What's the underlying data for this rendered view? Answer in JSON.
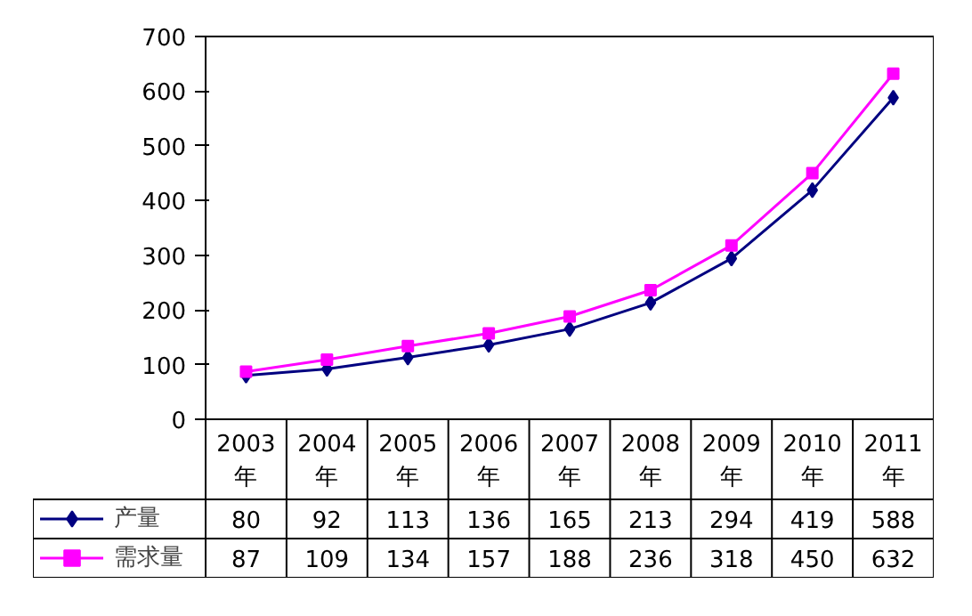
{
  "chart_data": {
    "type": "line",
    "categories": [
      "2003年",
      "2004年",
      "2005年",
      "2006年",
      "2007年",
      "2008年",
      "2009年",
      "2010年",
      "2011年"
    ],
    "series": [
      {
        "name": "产量",
        "color": "#000080",
        "marker": "diamond",
        "values": [
          80,
          92,
          113,
          136,
          165,
          213,
          294,
          419,
          588
        ]
      },
      {
        "name": "需求量",
        "color": "#ff00ff",
        "marker": "square",
        "values": [
          87,
          109,
          134,
          157,
          188,
          236,
          318,
          450,
          632
        ]
      }
    ],
    "ylim": [
      0,
      700
    ],
    "yticks": [
      0,
      100,
      200,
      300,
      400,
      500,
      600,
      700
    ],
    "grid": false,
    "legend": "bottom",
    "data_labels": true
  }
}
